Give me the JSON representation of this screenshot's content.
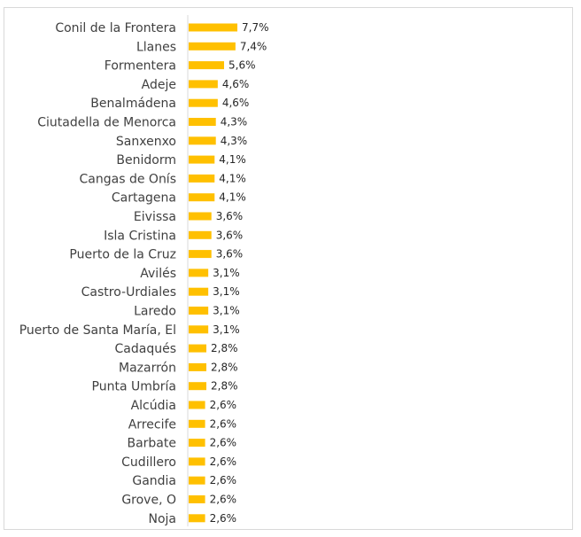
{
  "chart_data": {
    "type": "bar",
    "orientation": "horizontal",
    "categories": [
      "Conil de la Frontera",
      "Llanes",
      "Formentera",
      "Adeje",
      "Benalmádena",
      "Ciutadella de Menorca",
      "Sanxenxo",
      "Benidorm",
      "Cangas de Onís",
      "Cartagena",
      "Eivissa",
      "Isla Cristina",
      "Puerto de la Cruz",
      "Avilés",
      "Castro-Urdiales",
      "Laredo",
      "Puerto de Santa María, El",
      "Cadaqués",
      "Mazarrón",
      "Punta Umbría",
      "Alcúdia",
      "Arrecife",
      "Barbate",
      "Cudillero",
      "Gandia",
      "Grove, O",
      "Noja"
    ],
    "values": [
      7.7,
      7.4,
      5.6,
      4.6,
      4.6,
      4.3,
      4.3,
      4.1,
      4.1,
      4.1,
      3.6,
      3.6,
      3.6,
      3.1,
      3.1,
      3.1,
      3.1,
      2.8,
      2.8,
      2.8,
      2.6,
      2.6,
      2.6,
      2.6,
      2.6,
      2.6,
      2.6
    ],
    "value_labels": [
      "7,7%",
      "7,4%",
      "5,6%",
      "4,6%",
      "4,6%",
      "4,3%",
      "4,3%",
      "4,1%",
      "4,1%",
      "4,1%",
      "3,6%",
      "3,6%",
      "3,6%",
      "3,1%",
      "3,1%",
      "3,1%",
      "3,1%",
      "2,8%",
      "2,8%",
      "2,8%",
      "2,6%",
      "2,6%",
      "2,6%",
      "2,6%",
      "2,6%",
      "2,6%",
      "2,6%"
    ],
    "xlim": [
      0,
      40
    ],
    "title": "",
    "xlabel": "",
    "ylabel": "",
    "grid": false,
    "legend": "none",
    "colors": {
      "bar": "#ffc000",
      "axis": "#d9d9d9",
      "label": "#404040",
      "value": "#262626"
    }
  }
}
